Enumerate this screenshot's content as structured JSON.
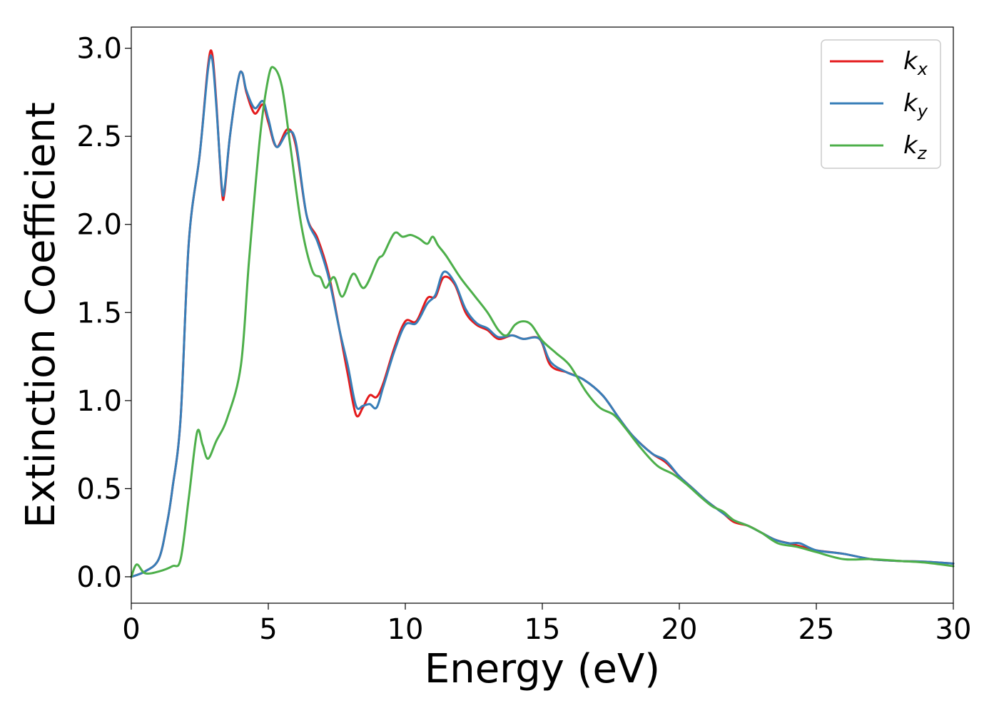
{
  "chart_data": {
    "type": "line",
    "title": "",
    "xlabel": "Energy (eV)",
    "ylabel": "Extinction Coefficient",
    "xlim": [
      0,
      30
    ],
    "ylim": [
      -0.15,
      3.12
    ],
    "xticks": [
      0,
      5,
      10,
      15,
      20,
      25,
      30
    ],
    "xtick_labels": [
      "0",
      "5",
      "10",
      "15",
      "20",
      "25",
      "30"
    ],
    "yticks": [
      0.0,
      0.5,
      1.0,
      1.5,
      2.0,
      2.5,
      3.0
    ],
    "ytick_labels": [
      "0.0",
      "0.5",
      "1.0",
      "1.5",
      "2.0",
      "2.5",
      "3.0"
    ],
    "grid": false,
    "legend_position": "top-right",
    "series": [
      {
        "name": "k_x",
        "label_base": "k",
        "label_sub": "x",
        "color": "#e41a1c",
        "points": [
          [
            0,
            0
          ],
          [
            0.5,
            0.03
          ],
          [
            1,
            0.1
          ],
          [
            1.3,
            0.3
          ],
          [
            1.5,
            0.5
          ],
          [
            1.8,
            0.9
          ],
          [
            2.1,
            1.9
          ],
          [
            2.5,
            2.4
          ],
          [
            2.8,
            2.9
          ],
          [
            2.95,
            2.97
          ],
          [
            3.1,
            2.7
          ],
          [
            3.3,
            2.2
          ],
          [
            3.4,
            2.18
          ],
          [
            3.6,
            2.5
          ],
          [
            3.9,
            2.82
          ],
          [
            4.05,
            2.86
          ],
          [
            4.2,
            2.75
          ],
          [
            4.5,
            2.63
          ],
          [
            4.8,
            2.68
          ],
          [
            5.0,
            2.58
          ],
          [
            5.3,
            2.44
          ],
          [
            5.7,
            2.54
          ],
          [
            6.0,
            2.45
          ],
          [
            6.4,
            2.05
          ],
          [
            6.8,
            1.92
          ],
          [
            7.2,
            1.72
          ],
          [
            7.6,
            1.4
          ],
          [
            7.9,
            1.15
          ],
          [
            8.2,
            0.92
          ],
          [
            8.45,
            0.96
          ],
          [
            8.7,
            1.03
          ],
          [
            8.95,
            1.02
          ],
          [
            9.2,
            1.1
          ],
          [
            9.6,
            1.3
          ],
          [
            10.0,
            1.45
          ],
          [
            10.4,
            1.45
          ],
          [
            10.8,
            1.58
          ],
          [
            11.1,
            1.59
          ],
          [
            11.4,
            1.7
          ],
          [
            11.8,
            1.66
          ],
          [
            12.2,
            1.5
          ],
          [
            12.6,
            1.43
          ],
          [
            13.0,
            1.4
          ],
          [
            13.4,
            1.35
          ],
          [
            13.9,
            1.37
          ],
          [
            14.3,
            1.35
          ],
          [
            14.9,
            1.35
          ],
          [
            15.3,
            1.2
          ],
          [
            15.9,
            1.16
          ],
          [
            16.5,
            1.12
          ],
          [
            17.2,
            1.03
          ],
          [
            17.8,
            0.9
          ],
          [
            18.3,
            0.8
          ],
          [
            19.0,
            0.7
          ],
          [
            19.5,
            0.65
          ],
          [
            20.0,
            0.57
          ],
          [
            20.5,
            0.5
          ],
          [
            21.0,
            0.43
          ],
          [
            21.6,
            0.36
          ],
          [
            22.0,
            0.31
          ],
          [
            22.5,
            0.29
          ],
          [
            23.0,
            0.25
          ],
          [
            23.5,
            0.21
          ],
          [
            24.0,
            0.19
          ],
          [
            24.5,
            0.17
          ],
          [
            25.0,
            0.15
          ],
          [
            26.0,
            0.13
          ],
          [
            27.0,
            0.1
          ],
          [
            28.0,
            0.09
          ],
          [
            29.0,
            0.085
          ],
          [
            30.0,
            0.075
          ]
        ]
      },
      {
        "name": "k_y",
        "label_base": "k",
        "label_sub": "y",
        "color": "#377eb8",
        "points": [
          [
            0,
            0
          ],
          [
            0.5,
            0.03
          ],
          [
            1,
            0.1
          ],
          [
            1.3,
            0.3
          ],
          [
            1.5,
            0.5
          ],
          [
            1.8,
            0.9
          ],
          [
            2.1,
            1.9
          ],
          [
            2.5,
            2.4
          ],
          [
            2.8,
            2.88
          ],
          [
            2.95,
            2.94
          ],
          [
            3.1,
            2.68
          ],
          [
            3.3,
            2.22
          ],
          [
            3.4,
            2.2
          ],
          [
            3.6,
            2.5
          ],
          [
            3.9,
            2.82
          ],
          [
            4.05,
            2.86
          ],
          [
            4.2,
            2.76
          ],
          [
            4.5,
            2.66
          ],
          [
            4.8,
            2.7
          ],
          [
            5.0,
            2.6
          ],
          [
            5.3,
            2.44
          ],
          [
            5.7,
            2.52
          ],
          [
            6.0,
            2.47
          ],
          [
            6.4,
            2.05
          ],
          [
            6.8,
            1.9
          ],
          [
            7.2,
            1.7
          ],
          [
            7.6,
            1.4
          ],
          [
            7.9,
            1.2
          ],
          [
            8.2,
            0.97
          ],
          [
            8.45,
            0.97
          ],
          [
            8.7,
            0.98
          ],
          [
            8.95,
            0.96
          ],
          [
            9.2,
            1.08
          ],
          [
            9.6,
            1.28
          ],
          [
            10.0,
            1.43
          ],
          [
            10.4,
            1.44
          ],
          [
            10.8,
            1.55
          ],
          [
            11.1,
            1.6
          ],
          [
            11.4,
            1.73
          ],
          [
            11.8,
            1.67
          ],
          [
            12.2,
            1.52
          ],
          [
            12.6,
            1.44
          ],
          [
            13.0,
            1.41
          ],
          [
            13.4,
            1.36
          ],
          [
            13.9,
            1.37
          ],
          [
            14.3,
            1.35
          ],
          [
            14.9,
            1.35
          ],
          [
            15.3,
            1.22
          ],
          [
            15.9,
            1.16
          ],
          [
            16.5,
            1.12
          ],
          [
            17.2,
            1.03
          ],
          [
            17.8,
            0.9
          ],
          [
            18.3,
            0.8
          ],
          [
            19.0,
            0.7
          ],
          [
            19.5,
            0.66
          ],
          [
            20.0,
            0.57
          ],
          [
            20.5,
            0.5
          ],
          [
            21.0,
            0.43
          ],
          [
            21.6,
            0.36
          ],
          [
            22.0,
            0.32
          ],
          [
            22.5,
            0.29
          ],
          [
            23.0,
            0.25
          ],
          [
            23.5,
            0.21
          ],
          [
            24.0,
            0.19
          ],
          [
            24.4,
            0.19
          ],
          [
            25.0,
            0.15
          ],
          [
            26.0,
            0.13
          ],
          [
            27.0,
            0.1
          ],
          [
            28.0,
            0.09
          ],
          [
            29.0,
            0.085
          ],
          [
            30.0,
            0.075
          ]
        ]
      },
      {
        "name": "k_z",
        "label_base": "k",
        "label_sub": "z",
        "color": "#4daf4a",
        "points": [
          [
            0,
            0
          ],
          [
            0.2,
            0.07
          ],
          [
            0.5,
            0.02
          ],
          [
            1.0,
            0.03
          ],
          [
            1.5,
            0.06
          ],
          [
            1.8,
            0.1
          ],
          [
            2.1,
            0.45
          ],
          [
            2.4,
            0.82
          ],
          [
            2.6,
            0.75
          ],
          [
            2.8,
            0.67
          ],
          [
            3.1,
            0.77
          ],
          [
            3.5,
            0.9
          ],
          [
            4.0,
            1.2
          ],
          [
            4.3,
            1.8
          ],
          [
            4.7,
            2.5
          ],
          [
            5.0,
            2.83
          ],
          [
            5.2,
            2.89
          ],
          [
            5.5,
            2.78
          ],
          [
            5.8,
            2.45
          ],
          [
            6.2,
            2.0
          ],
          [
            6.6,
            1.74
          ],
          [
            6.9,
            1.7
          ],
          [
            7.1,
            1.64
          ],
          [
            7.4,
            1.7
          ],
          [
            7.7,
            1.59
          ],
          [
            8.1,
            1.72
          ],
          [
            8.5,
            1.64
          ],
          [
            9.0,
            1.8
          ],
          [
            9.2,
            1.83
          ],
          [
            9.6,
            1.95
          ],
          [
            9.9,
            1.93
          ],
          [
            10.2,
            1.94
          ],
          [
            10.5,
            1.92
          ],
          [
            10.8,
            1.89
          ],
          [
            11.0,
            1.93
          ],
          [
            11.2,
            1.88
          ],
          [
            11.5,
            1.82
          ],
          [
            12.0,
            1.7
          ],
          [
            12.5,
            1.6
          ],
          [
            13.0,
            1.5
          ],
          [
            13.4,
            1.4
          ],
          [
            13.7,
            1.37
          ],
          [
            14.0,
            1.43
          ],
          [
            14.3,
            1.45
          ],
          [
            14.6,
            1.43
          ],
          [
            15.0,
            1.34
          ],
          [
            15.5,
            1.27
          ],
          [
            16.0,
            1.2
          ],
          [
            16.6,
            1.05
          ],
          [
            17.1,
            0.96
          ],
          [
            17.6,
            0.92
          ],
          [
            18.0,
            0.85
          ],
          [
            18.6,
            0.73
          ],
          [
            19.2,
            0.63
          ],
          [
            19.8,
            0.58
          ],
          [
            20.3,
            0.52
          ],
          [
            20.8,
            0.45
          ],
          [
            21.2,
            0.4
          ],
          [
            21.6,
            0.37
          ],
          [
            22.0,
            0.32
          ],
          [
            22.5,
            0.29
          ],
          [
            23.0,
            0.25
          ],
          [
            23.6,
            0.19
          ],
          [
            24.3,
            0.17
          ],
          [
            25.0,
            0.14
          ],
          [
            26.0,
            0.1
          ],
          [
            27.0,
            0.1
          ],
          [
            28.0,
            0.09
          ],
          [
            29.0,
            0.08
          ],
          [
            30.0,
            0.06
          ]
        ]
      }
    ]
  }
}
